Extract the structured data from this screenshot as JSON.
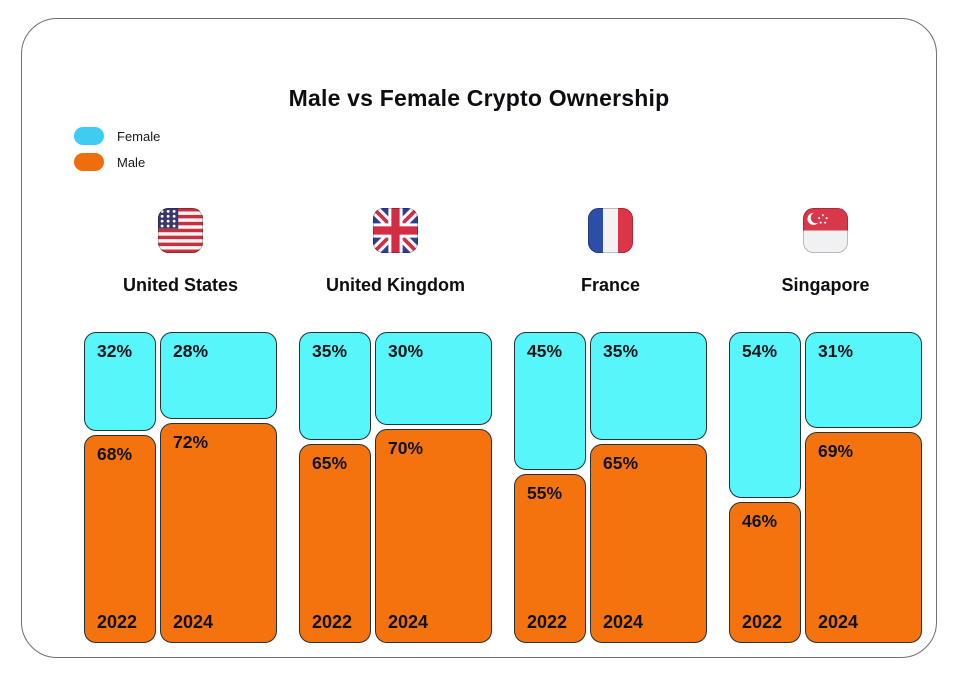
{
  "title": "Male vs Female Crypto Ownership",
  "legend": {
    "items": [
      {
        "label": "Female",
        "color": "#3ecdf0"
      },
      {
        "label": "Male",
        "color": "#ee6d0d"
      }
    ]
  },
  "colors": {
    "female_bar": "#57f6fb",
    "male_bar": "#f4730e",
    "bar_border": "#223138",
    "text": "#0b0d12",
    "card_border": "#6f6f6f"
  },
  "chart_data": {
    "type": "bar",
    "subtype": "stacked-100-percent-columns",
    "title": "Male vs Female Crypto Ownership",
    "series_labels": [
      "Female",
      "Male"
    ],
    "unit": "%",
    "ylim": [
      0,
      100
    ],
    "grid": false,
    "legend_position": "top-left",
    "countries": [
      {
        "name": "United States",
        "flag_icon": "us-flag-icon",
        "columns": [
          {
            "year": "2022",
            "female": 32,
            "male": 68,
            "female_label": "32%",
            "male_label": "68%"
          },
          {
            "year": "2024",
            "female": 28,
            "male": 72,
            "female_label": "28%",
            "male_label": "72%"
          }
        ]
      },
      {
        "name": "United Kingdom",
        "flag_icon": "uk-flag-icon",
        "columns": [
          {
            "year": "2022",
            "female": 35,
            "male": 65,
            "female_label": "35%",
            "male_label": "65%"
          },
          {
            "year": "2024",
            "female": 30,
            "male": 70,
            "female_label": "30%",
            "male_label": "70%"
          }
        ]
      },
      {
        "name": "France",
        "flag_icon": "france-flag-icon",
        "columns": [
          {
            "year": "2022",
            "female": 45,
            "male": 55,
            "female_label": "45%",
            "male_label": "55%"
          },
          {
            "year": "2024",
            "female": 35,
            "male": 65,
            "female_label": "35%",
            "male_label": "65%"
          }
        ]
      },
      {
        "name": "Singapore",
        "flag_icon": "singapore-flag-icon",
        "columns": [
          {
            "year": "2022",
            "female": 54,
            "male": 46,
            "female_label": "54%",
            "male_label": "46%"
          },
          {
            "year": "2024",
            "female": 31,
            "male": 69,
            "female_label": "31%",
            "male_label": "69%"
          }
        ]
      }
    ]
  }
}
